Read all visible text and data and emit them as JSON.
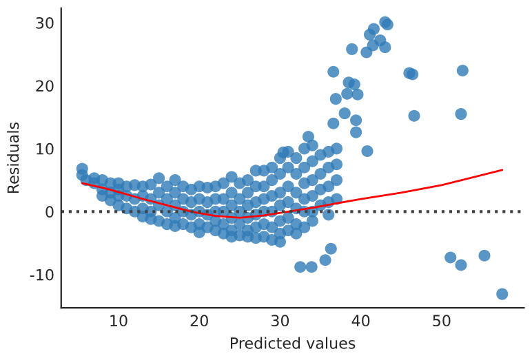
{
  "chart_data": {
    "type": "scatter",
    "xlabel": "Predicted values",
    "ylabel": "Residuals",
    "xlim": [
      2.9,
      60.2
    ],
    "ylim": [
      -15.3,
      32.3
    ],
    "xticks": [
      10,
      20,
      30,
      40,
      50
    ],
    "yticks": [
      -10,
      0,
      10,
      20,
      30
    ],
    "grid": false,
    "series": [
      {
        "marker": "circle",
        "color": "#2f7ab6",
        "x": [
          5.5,
          5.5,
          6,
          7,
          7,
          8,
          8,
          8,
          9,
          9,
          9,
          10,
          10,
          10,
          10,
          11,
          11,
          11,
          12,
          12,
          12,
          13,
          13,
          13,
          13,
          14,
          14,
          14,
          14,
          15,
          15,
          15,
          15,
          16,
          16,
          16,
          16,
          17,
          17,
          17,
          17,
          17,
          18,
          18,
          18,
          18,
          19,
          19,
          19,
          19,
          20,
          20,
          20,
          20,
          20,
          21,
          21,
          21,
          21,
          22,
          22,
          22,
          22,
          22,
          23,
          23,
          23,
          23,
          23,
          24,
          24,
          24,
          24,
          24,
          24,
          25,
          25,
          25,
          25,
          25,
          26,
          26,
          26,
          26,
          26,
          26,
          27,
          27,
          27,
          27,
          27,
          27,
          28,
          28,
          28,
          28,
          28,
          28,
          29,
          29,
          29,
          29,
          29,
          29,
          30,
          30,
          30,
          30,
          30,
          30,
          30,
          31,
          31,
          31,
          31,
          31,
          31,
          32,
          32,
          32,
          32,
          32,
          32,
          33,
          33,
          33,
          33,
          33,
          33,
          34,
          34,
          34,
          34,
          34,
          34,
          35,
          35,
          35,
          35,
          36,
          36,
          36,
          36,
          36,
          37,
          37,
          37,
          37,
          43.0,
          43.3,
          41.6,
          41.1,
          42.4,
          41.5,
          43.0,
          38.9,
          40.7,
          36.6,
          46.0,
          46.4,
          52.6,
          38.5,
          39.2,
          39.6,
          36.9,
          38.3,
          46.6,
          52.4,
          38.0,
          39.4,
          36.6,
          39.4,
          33.5,
          40.8,
          30.4,
          32.5,
          33.9,
          36.3,
          35.6,
          51.1,
          52.4,
          55.3,
          57.5
        ],
        "values": [
          6.8,
          5.8,
          5.0,
          4.5,
          5.3,
          5,
          3.5,
          2.5,
          4.5,
          3.0,
          1.8,
          4.5,
          3.5,
          2.5,
          1.0,
          4.0,
          2.5,
          0.5,
          4.2,
          2.0,
          0,
          4.0,
          2.5,
          0.5,
          -0.8,
          4.3,
          2.0,
          0,
          -1.2,
          5.3,
          3.0,
          1.0,
          -1.5,
          4.0,
          2.0,
          0,
          -2,
          5,
          3.0,
          1.0,
          -1.0,
          -2.3,
          4.0,
          2.0,
          0,
          -2.0,
          3.5,
          1.5,
          -0.5,
          -2.5,
          4.0,
          2.0,
          0,
          -2.0,
          -3.3,
          3.8,
          1.5,
          -0.5,
          -2.5,
          4.0,
          2.0,
          0,
          -1.5,
          -3.0,
          4.5,
          2.0,
          0,
          -2.0,
          -3.5,
          5.5,
          3.0,
          1.0,
          -1.0,
          -3.0,
          -4,
          4.5,
          2.0,
          0,
          -2.0,
          -3.8,
          5,
          3.0,
          1.0,
          -1.0,
          -3.0,
          -4.0,
          6.5,
          4.0,
          1.5,
          -0.5,
          -2.5,
          -4.2,
          6.5,
          4.0,
          2.0,
          0,
          -2.0,
          -4.0,
          7,
          5.0,
          2.5,
          0,
          -2.5,
          -4.5,
          8.5,
          6,
          3.0,
          1.0,
          -1.5,
          -3.5,
          -4.8,
          9.5,
          7,
          4.0,
          1.5,
          -1.0,
          -3.0,
          8.5,
          6.0,
          3.0,
          0.5,
          -2.0,
          -3.5,
          10,
          7,
          4.5,
          2.0,
          0,
          -2.5,
          10.5,
          8,
          5,
          2.5,
          0,
          -1.5,
          9,
          6,
          3.5,
          1.0,
          9.5,
          7,
          4.0,
          1.5,
          -0.5,
          10,
          7.5,
          5,
          2.0,
          30.1,
          29.7,
          29.0,
          28.1,
          27.2,
          26.4,
          26.1,
          25.8,
          25.3,
          22.2,
          22.0,
          21.8,
          22.4,
          20.5,
          20.2,
          18.6,
          17.9,
          18.7,
          15.2,
          15.5,
          15.6,
          14.5,
          14.0,
          12.6,
          11.9,
          9.6,
          9.4,
          -8.8,
          -8.8,
          -5.9,
          -7.7,
          -7.3,
          -8.5,
          -7.0,
          -13.1
        ]
      },
      {
        "type": "line",
        "marker": "none",
        "color": "#ff0000",
        "x": [
          5.5,
          8,
          10,
          13,
          16,
          19,
          22,
          25,
          28,
          31,
          34,
          37,
          40,
          45,
          50,
          57.5
        ],
        "values": [
          4.5,
          3.8,
          3.1,
          2.0,
          1.0,
          0,
          -0.7,
          -1.0,
          -0.6,
          0,
          0.6,
          1.3,
          2.0,
          3.0,
          4.2,
          6.6
        ]
      }
    ],
    "ref_lines": [
      {
        "axis": "y",
        "value": 0,
        "color": "#404040",
        "line_style": "dotted"
      }
    ]
  }
}
